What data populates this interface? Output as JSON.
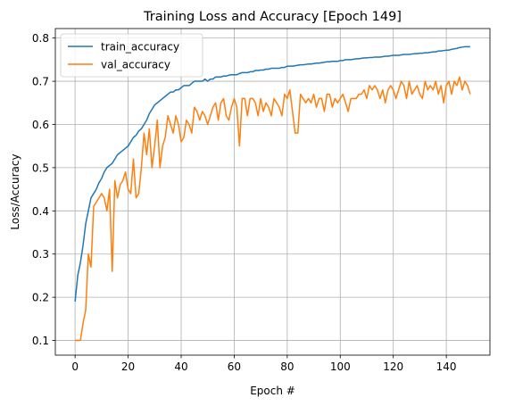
{
  "chart_data": {
    "type": "line",
    "title": "Training Loss and Accuracy [Epoch 149]",
    "xlabel": "Epoch #",
    "ylabel": "Loss/Accuracy",
    "xlim": [
      -7.45,
      156.45
    ],
    "ylim": [
      0.066,
      0.822
    ],
    "xticks": [
      0,
      20,
      40,
      60,
      80,
      100,
      120,
      140
    ],
    "yticks": [
      0.1,
      0.2,
      0.3,
      0.4,
      0.5,
      0.6,
      0.7,
      0.8
    ],
    "xtick_labels": [
      "0",
      "20",
      "40",
      "60",
      "80",
      "100",
      "120",
      "140"
    ],
    "ytick_labels": [
      "0.1",
      "0.2",
      "0.3",
      "0.4",
      "0.5",
      "0.6",
      "0.7",
      "0.8"
    ],
    "grid": true,
    "legend_position": "top-left",
    "series": [
      {
        "name": "train_accuracy",
        "color": "#1f77b4",
        "x": [
          0,
          1,
          2,
          3,
          4,
          5,
          6,
          7,
          8,
          9,
          10,
          11,
          12,
          13,
          14,
          15,
          16,
          17,
          18,
          19,
          20,
          21,
          22,
          23,
          24,
          25,
          26,
          27,
          28,
          29,
          30,
          31,
          32,
          33,
          34,
          35,
          36,
          37,
          38,
          39,
          40,
          41,
          42,
          43,
          44,
          45,
          46,
          47,
          48,
          49,
          50,
          51,
          52,
          53,
          54,
          55,
          56,
          57,
          58,
          59,
          60,
          61,
          62,
          63,
          64,
          65,
          66,
          67,
          68,
          69,
          70,
          71,
          72,
          73,
          74,
          75,
          76,
          77,
          78,
          79,
          80,
          81,
          82,
          83,
          84,
          85,
          86,
          87,
          88,
          89,
          90,
          91,
          92,
          93,
          94,
          95,
          96,
          97,
          98,
          99,
          100,
          101,
          102,
          103,
          104,
          105,
          106,
          107,
          108,
          109,
          110,
          111,
          112,
          113,
          114,
          115,
          116,
          117,
          118,
          119,
          120,
          121,
          122,
          123,
          124,
          125,
          126,
          127,
          128,
          129,
          130,
          131,
          132,
          133,
          134,
          135,
          136,
          137,
          138,
          139,
          140,
          141,
          142,
          143,
          144,
          145,
          146,
          147,
          148,
          149
        ],
        "y": [
          0.19,
          0.25,
          0.28,
          0.32,
          0.37,
          0.4,
          0.43,
          0.44,
          0.45,
          0.465,
          0.475,
          0.49,
          0.5,
          0.505,
          0.51,
          0.52,
          0.53,
          0.535,
          0.54,
          0.545,
          0.55,
          0.56,
          0.57,
          0.575,
          0.585,
          0.59,
          0.6,
          0.61,
          0.625,
          0.635,
          0.645,
          0.65,
          0.655,
          0.66,
          0.665,
          0.67,
          0.675,
          0.675,
          0.68,
          0.68,
          0.685,
          0.69,
          0.69,
          0.69,
          0.695,
          0.7,
          0.7,
          0.7,
          0.7,
          0.705,
          0.7,
          0.705,
          0.705,
          0.71,
          0.71,
          0.71,
          0.712,
          0.712,
          0.714,
          0.715,
          0.715,
          0.715,
          0.718,
          0.72,
          0.72,
          0.72,
          0.722,
          0.722,
          0.725,
          0.725,
          0.726,
          0.726,
          0.728,
          0.728,
          0.73,
          0.73,
          0.73,
          0.73,
          0.732,
          0.732,
          0.735,
          0.735,
          0.735,
          0.736,
          0.737,
          0.738,
          0.738,
          0.739,
          0.74,
          0.74,
          0.741,
          0.742,
          0.742,
          0.743,
          0.744,
          0.745,
          0.745,
          0.746,
          0.746,
          0.746,
          0.748,
          0.748,
          0.75,
          0.75,
          0.75,
          0.751,
          0.752,
          0.752,
          0.753,
          0.754,
          0.754,
          0.755,
          0.755,
          0.756,
          0.756,
          0.756,
          0.757,
          0.758,
          0.758,
          0.759,
          0.76,
          0.76,
          0.76,
          0.761,
          0.762,
          0.762,
          0.762,
          0.763,
          0.764,
          0.764,
          0.765,
          0.765,
          0.766,
          0.766,
          0.767,
          0.768,
          0.768,
          0.77,
          0.77,
          0.771,
          0.772,
          0.772,
          0.774,
          0.775,
          0.776,
          0.778,
          0.779,
          0.78,
          0.78,
          0.78
        ]
      },
      {
        "name": "val_accuracy",
        "color": "#ff7f0e",
        "x": [
          0,
          1,
          2,
          3,
          4,
          5,
          6,
          7,
          8,
          9,
          10,
          11,
          12,
          13,
          14,
          15,
          16,
          17,
          18,
          19,
          20,
          21,
          22,
          23,
          24,
          25,
          26,
          27,
          28,
          29,
          30,
          31,
          32,
          33,
          34,
          35,
          36,
          37,
          38,
          39,
          40,
          41,
          42,
          43,
          44,
          45,
          46,
          47,
          48,
          49,
          50,
          51,
          52,
          53,
          54,
          55,
          56,
          57,
          58,
          59,
          60,
          61,
          62,
          63,
          64,
          65,
          66,
          67,
          68,
          69,
          70,
          71,
          72,
          73,
          74,
          75,
          76,
          77,
          78,
          79,
          80,
          81,
          82,
          83,
          84,
          85,
          86,
          87,
          88,
          89,
          90,
          91,
          92,
          93,
          94,
          95,
          96,
          97,
          98,
          99,
          100,
          101,
          102,
          103,
          104,
          105,
          106,
          107,
          108,
          109,
          110,
          111,
          112,
          113,
          114,
          115,
          116,
          117,
          118,
          119,
          120,
          121,
          122,
          123,
          124,
          125,
          126,
          127,
          128,
          129,
          130,
          131,
          132,
          133,
          134,
          135,
          136,
          137,
          138,
          139,
          140,
          141,
          142,
          143,
          144,
          145,
          146,
          147,
          148,
          149
        ],
        "y": [
          0.1,
          0.1,
          0.1,
          0.14,
          0.17,
          0.3,
          0.27,
          0.41,
          0.42,
          0.43,
          0.44,
          0.43,
          0.4,
          0.45,
          0.26,
          0.47,
          0.43,
          0.46,
          0.47,
          0.49,
          0.45,
          0.44,
          0.52,
          0.43,
          0.44,
          0.5,
          0.58,
          0.53,
          0.59,
          0.5,
          0.55,
          0.61,
          0.5,
          0.55,
          0.57,
          0.62,
          0.6,
          0.58,
          0.62,
          0.6,
          0.56,
          0.57,
          0.61,
          0.6,
          0.58,
          0.64,
          0.63,
          0.61,
          0.63,
          0.62,
          0.6,
          0.62,
          0.64,
          0.65,
          0.61,
          0.65,
          0.66,
          0.62,
          0.61,
          0.64,
          0.66,
          0.64,
          0.55,
          0.66,
          0.66,
          0.62,
          0.66,
          0.66,
          0.65,
          0.62,
          0.66,
          0.63,
          0.65,
          0.64,
          0.62,
          0.66,
          0.65,
          0.64,
          0.62,
          0.67,
          0.66,
          0.68,
          0.63,
          0.58,
          0.58,
          0.67,
          0.66,
          0.65,
          0.66,
          0.65,
          0.67,
          0.64,
          0.66,
          0.66,
          0.63,
          0.67,
          0.67,
          0.64,
          0.66,
          0.65,
          0.66,
          0.67,
          0.65,
          0.63,
          0.66,
          0.66,
          0.66,
          0.67,
          0.67,
          0.68,
          0.66,
          0.69,
          0.68,
          0.69,
          0.68,
          0.66,
          0.68,
          0.65,
          0.68,
          0.69,
          0.68,
          0.66,
          0.68,
          0.7,
          0.69,
          0.66,
          0.7,
          0.67,
          0.68,
          0.69,
          0.67,
          0.66,
          0.7,
          0.68,
          0.69,
          0.68,
          0.7,
          0.67,
          0.69,
          0.65,
          0.69,
          0.7,
          0.67,
          0.7,
          0.69,
          0.71,
          0.68,
          0.7,
          0.69,
          0.67
        ]
      }
    ]
  }
}
